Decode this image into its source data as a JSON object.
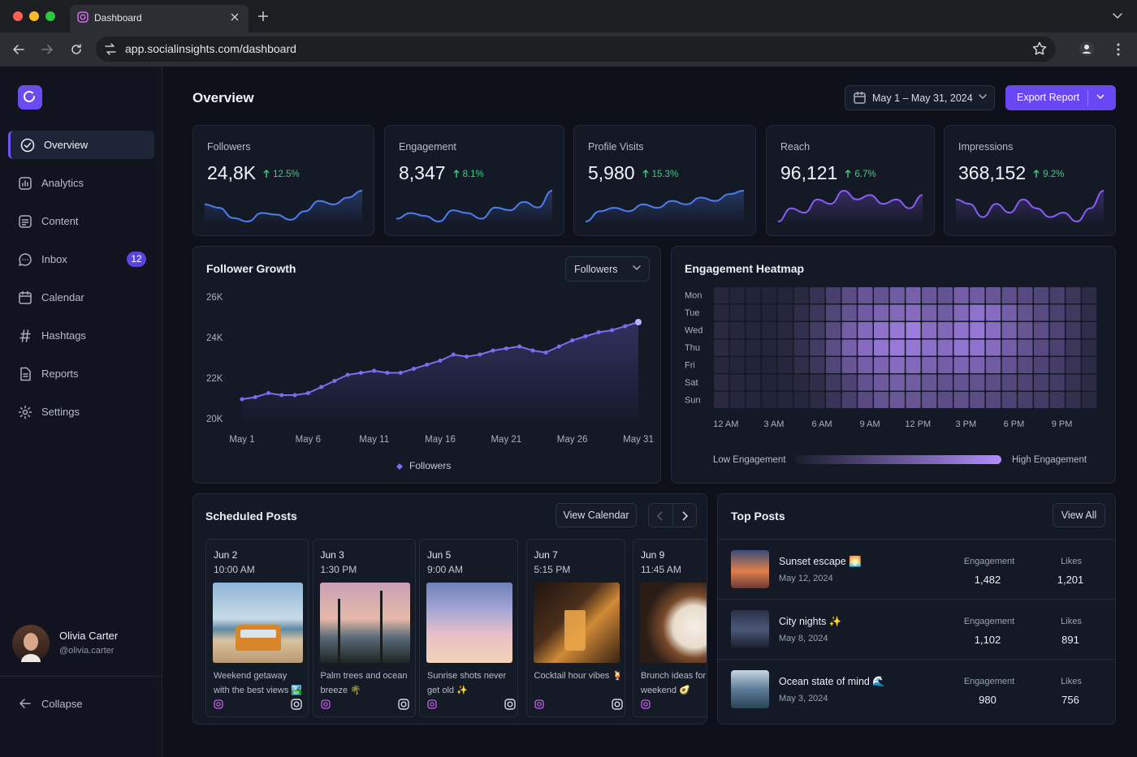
{
  "browser": {
    "tab_title": "Dashboard",
    "url": "app.socialinsights.com/dashboard"
  },
  "sidebar": {
    "nav": [
      {
        "label": "Overview"
      },
      {
        "label": "Analytics"
      },
      {
        "label": "Content"
      },
      {
        "label": "Inbox",
        "badge": "12"
      },
      {
        "label": "Calendar"
      },
      {
        "label": "Hashtags"
      },
      {
        "label": "Reports"
      },
      {
        "label": "Settings"
      }
    ],
    "user": {
      "name": "Olivia Carter",
      "handle": "@olivia.carter"
    },
    "collapse": "Collapse"
  },
  "header": {
    "title": "Overview",
    "date_range": "May 1 – May 31, 2024",
    "export": "Export Report"
  },
  "kpis": [
    {
      "label": "Followers",
      "value": "24,8K",
      "change": "12.5%",
      "color": "#4f7df0",
      "spark": [
        30,
        28,
        22,
        20,
        25,
        24,
        21,
        26,
        32,
        30,
        34,
        38
      ]
    },
    {
      "label": "Engagement",
      "value": "8,347",
      "change": "8.1%",
      "color": "#4f7df0",
      "spark": [
        20,
        24,
        22,
        18,
        26,
        24,
        20,
        28,
        26,
        32,
        28,
        40
      ]
    },
    {
      "label": "Profile Visits",
      "value": "5,980",
      "change": "15.3%",
      "color": "#4f7df0",
      "spark": [
        18,
        24,
        26,
        24,
        28,
        26,
        30,
        28,
        32,
        30,
        34,
        36
      ]
    },
    {
      "label": "Reach",
      "value": "96,121",
      "change": "6.7%",
      "color": "#8b5cf6",
      "spark": [
        20,
        26,
        24,
        30,
        28,
        34,
        30,
        32,
        28,
        30,
        26,
        32
      ]
    },
    {
      "label": "Impressions",
      "value": "368,152",
      "change": "9.2%",
      "color": "#8b5cf6",
      "spark": [
        30,
        28,
        22,
        28,
        24,
        30,
        26,
        22,
        24,
        20,
        26,
        34
      ]
    }
  ],
  "chart_data": [
    {
      "type": "line",
      "title": "Follower Growth",
      "selector": "Followers",
      "categories": [
        "May 1",
        null,
        null,
        null,
        null,
        "May 6",
        null,
        null,
        null,
        null,
        "May 11",
        null,
        null,
        null,
        null,
        "May 16",
        null,
        null,
        null,
        null,
        "May 21",
        null,
        null,
        null,
        null,
        "May 26",
        null,
        null,
        null,
        null,
        "May 31"
      ],
      "series": [
        {
          "name": "Followers",
          "color": "#7c6cf0",
          "values": [
            21000,
            21100,
            21300,
            21200,
            21200,
            21300,
            21600,
            21900,
            22200,
            22300,
            22400,
            22300,
            22300,
            22500,
            22700,
            22900,
            23200,
            23100,
            23200,
            23400,
            23500,
            23600,
            23400,
            23300,
            23600,
            23900,
            24100,
            24300,
            24400,
            24600,
            24800
          ]
        }
      ],
      "ylim": [
        20000,
        26000
      ],
      "yticks": [
        {
          "value": 20000,
          "label": "20K"
        },
        {
          "value": 22000,
          "label": "22K"
        },
        {
          "value": 24000,
          "label": "24K"
        },
        {
          "value": 26000,
          "label": "26K"
        }
      ],
      "grid": false
    },
    {
      "type": "heatmap",
      "title": "Engagement Heatmap",
      "categories": [
        "12 AM",
        null,
        null,
        "3 AM",
        null,
        null,
        "6 AM",
        null,
        null,
        "9 AM",
        null,
        null,
        "12 PM",
        null,
        null,
        "3 PM",
        null,
        null,
        "6 PM",
        null,
        null,
        "9 PM",
        null,
        null
      ],
      "series": [
        {
          "name": "Mon",
          "values": [
            8,
            6,
            5,
            5,
            6,
            10,
            18,
            30,
            42,
            50,
            48,
            55,
            60,
            52,
            48,
            58,
            55,
            50,
            44,
            40,
            36,
            30,
            22,
            12
          ]
        },
        {
          "name": "Tue",
          "values": [
            8,
            6,
            5,
            5,
            8,
            14,
            22,
            35,
            48,
            55,
            62,
            66,
            70,
            60,
            56,
            66,
            75,
            70,
            58,
            48,
            40,
            32,
            24,
            14
          ]
        },
        {
          "name": "Wed",
          "values": [
            10,
            8,
            6,
            6,
            9,
            16,
            26,
            40,
            58,
            68,
            75,
            80,
            85,
            72,
            66,
            76,
            80,
            72,
            60,
            50,
            42,
            34,
            24,
            14
          ]
        },
        {
          "name": "Thu",
          "values": [
            10,
            8,
            6,
            6,
            9,
            16,
            26,
            42,
            60,
            70,
            78,
            82,
            80,
            74,
            70,
            78,
            76,
            70,
            58,
            48,
            40,
            32,
            22,
            12
          ]
        },
        {
          "name": "Fri",
          "values": [
            8,
            6,
            5,
            5,
            8,
            14,
            22,
            36,
            50,
            58,
            64,
            70,
            68,
            62,
            58,
            64,
            62,
            56,
            48,
            40,
            34,
            28,
            20,
            12
          ]
        },
        {
          "name": "Sat",
          "values": [
            10,
            8,
            6,
            5,
            6,
            9,
            14,
            24,
            34,
            46,
            54,
            58,
            56,
            50,
            46,
            48,
            46,
            42,
            38,
            34,
            30,
            26,
            18,
            12
          ]
        },
        {
          "name": "Sun",
          "values": [
            10,
            8,
            6,
            5,
            6,
            8,
            12,
            20,
            30,
            40,
            48,
            52,
            50,
            46,
            42,
            44,
            42,
            38,
            34,
            30,
            26,
            22,
            16,
            10
          ]
        }
      ],
      "zlim": [
        0,
        100
      ],
      "low_color": "#1a1e2d",
      "high_color": "#b48cff",
      "legend_low": "Low Engagement",
      "legend_high": "High Engagement"
    }
  ],
  "scheduled": {
    "title": "Scheduled Posts",
    "action": "View Calendar",
    "posts": [
      {
        "date": "Jun 2",
        "time": "10:00 AM",
        "caption": "Weekend getaway with the best views 🏞️"
      },
      {
        "date": "Jun 3",
        "time": "1:30 PM",
        "caption": "Palm trees and ocean breeze 🌴"
      },
      {
        "date": "Jun 5",
        "time": "9:00 AM",
        "caption": "Sunrise shots never get old ✨"
      },
      {
        "date": "Jun 7",
        "time": "5:15 PM",
        "caption": "Cocktail hour vibes 🍹"
      },
      {
        "date": "Jun 9",
        "time": "11:45 AM",
        "caption": "Brunch ideas for the weekend 🥑"
      }
    ]
  },
  "top_posts": {
    "title": "Top Posts",
    "action": "View All",
    "columns": [
      "Engagement",
      "Likes"
    ],
    "rows": [
      {
        "title": "Sunset escape 🌅",
        "date": "May 12, 2024",
        "engagement": "1,482",
        "likes": "1,201"
      },
      {
        "title": "City nights ✨",
        "date": "May 8, 2024",
        "engagement": "1,102",
        "likes": "891"
      },
      {
        "title": "Ocean state of mind 🌊",
        "date": "May 3, 2024",
        "engagement": "980",
        "likes": "756"
      }
    ]
  }
}
